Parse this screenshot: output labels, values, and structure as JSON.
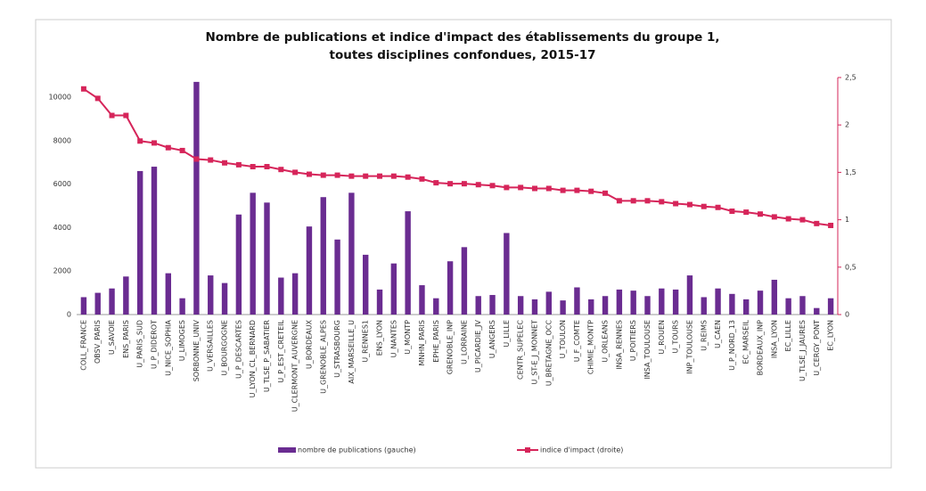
{
  "chart_data": {
    "type": "bar_line",
    "title": [
      "Nombre de publications et indice d'impact des établissements du groupe 1,",
      "toutes disciplines confondues, 2015-17"
    ],
    "categories": [
      "COLL_FRANCE",
      "OBSV_PARIS",
      "U_SAVOIE",
      "ENS_PARIS",
      "U_PARIS_SUD",
      "U_P_DIDEROT",
      "U_NICE_SOPHIA",
      "U_LIMOGES",
      "SORBONNE_UNIV",
      "U_VERSAILLES",
      "U_BOURGOGNE",
      "U_P_DESCARTES",
      "U_LYON_CL_BERNARD",
      "U_TLSE_P_SABATIER",
      "U_P_EST_CRETEIL",
      "U_CLERMONT_AUVERGNE",
      "U_BORDEAUX",
      "U_GRENOBLE_ALPES",
      "U_STRASBOURG",
      "AIX_MARSEILLE_U",
      "U_RENNES1",
      "ENS_LYON",
      "U_NANTES",
      "U_MONTP",
      "MNHN_PARIS",
      "EPHE_PARIS",
      "GRENOBLE_INP",
      "U_LORRAINE",
      "U_PICARDIE_JV",
      "U_ANGERS",
      "U_LILLE",
      "CENTR_SUPELEC",
      "U_ST-E_J_MONNET",
      "U_BRETAGNE_OCC",
      "U_TOULON",
      "U_F_COMTE",
      "CHIMIE_MONTP",
      "U_ORLEANS",
      "INSA_RENNES",
      "U_POITIERS",
      "INSA_TOULOUSE",
      "U_ROUEN",
      "U_TOURS",
      "INP_TOULOUSE",
      "U_REIMS",
      "U_CAEN",
      "U_P_NORD_13",
      "EC_MARSEIL",
      "BORDEAUX_INP",
      "INSA_LYON",
      "EC_LILLE",
      "U_TLSE_J_JAURES",
      "U_CERGY_PONT",
      "EC_LYON"
    ],
    "series": [
      {
        "name": "nombre de publications (gauche)",
        "color": "#6a2c91",
        "kind": "bar",
        "axis": "y",
        "values": [
          800,
          1000,
          1200,
          1750,
          6600,
          6800,
          1900,
          750,
          10700,
          1800,
          1450,
          4600,
          5600,
          5150,
          1700,
          1900,
          4050,
          5400,
          3450,
          5600,
          2750,
          1150,
          2350,
          4750,
          1350,
          750,
          2450,
          3100,
          850,
          900,
          3750,
          850,
          700,
          1050,
          650,
          1250,
          700,
          850,
          1150,
          1100,
          850,
          1200,
          1150,
          1800,
          800,
          1200,
          950,
          700,
          1100,
          1600,
          750,
          850,
          300,
          750
        ]
      },
      {
        "name": "indice d'impact (droite)",
        "color": "#d6255a",
        "kind": "line",
        "axis": "y2",
        "values": [
          2.38,
          2.28,
          2.1,
          2.1,
          1.83,
          1.81,
          1.76,
          1.73,
          1.64,
          1.63,
          1.6,
          1.58,
          1.56,
          1.56,
          1.53,
          1.5,
          1.48,
          1.47,
          1.47,
          1.46,
          1.46,
          1.46,
          1.46,
          1.45,
          1.43,
          1.39,
          1.38,
          1.38,
          1.37,
          1.36,
          1.34,
          1.34,
          1.33,
          1.33,
          1.31,
          1.31,
          1.3,
          1.28,
          1.2,
          1.2,
          1.2,
          1.19,
          1.17,
          1.16,
          1.14,
          1.13,
          1.09,
          1.08,
          1.06,
          1.03,
          1.01,
          1.0,
          0.96,
          0.94
        ]
      }
    ],
    "ylim": [
      0,
      10900
    ],
    "yticks": [
      0,
      2000,
      4000,
      6000,
      8000,
      10000
    ],
    "y2lim": [
      0,
      2.5
    ],
    "y2ticks": [
      0,
      {
        "value": 0.5,
        "label": "0,5"
      },
      1,
      {
        "value": 1.5,
        "label": "1,5"
      },
      2,
      {
        "value": 2.5,
        "label": "2,5"
      }
    ],
    "y2color": "#d6255a",
    "grid": false
  }
}
